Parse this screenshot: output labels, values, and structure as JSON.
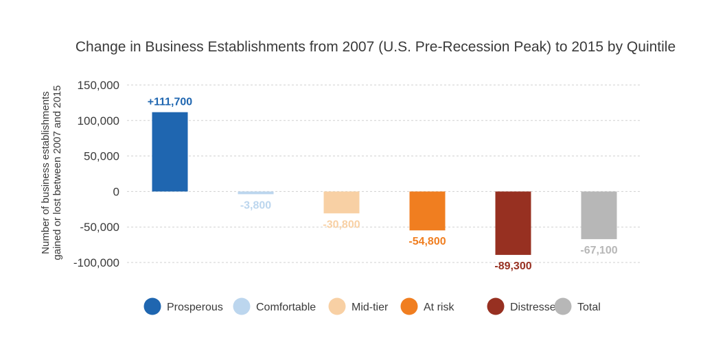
{
  "chart_data": {
    "type": "bar",
    "title": "Change in Business Establishments from 2007 (U.S. Pre-Recession Peak) to 2015 by Quintile",
    "ylabel_lines": [
      "Number of business establishments",
      "gained or lost between 2007 and 2015"
    ],
    "xlabel": "",
    "ylim": [
      -100000,
      150000
    ],
    "yticks": [
      150000,
      100000,
      50000,
      0,
      -50000,
      -100000
    ],
    "ytick_labels": [
      "150,000",
      "100,000",
      "50,000",
      "0",
      "-50,000",
      "-100,000"
    ],
    "grid": true,
    "legend_position": "bottom",
    "categories": [
      "Prosperous",
      "Comfortable",
      "Mid-tier",
      "At risk",
      "Distressed",
      "Total"
    ],
    "values": [
      111700,
      -3800,
      -30800,
      -54800,
      -89300,
      -67100
    ],
    "data_labels": [
      "+111,700",
      "-3,800",
      "-30,800",
      "-54,800",
      "-89,300",
      "-67,100"
    ],
    "colors": [
      "#1f66b0",
      "#bcd6ee",
      "#f8d0a4",
      "#f07e20",
      "#973021",
      "#b7b7b7"
    ]
  }
}
